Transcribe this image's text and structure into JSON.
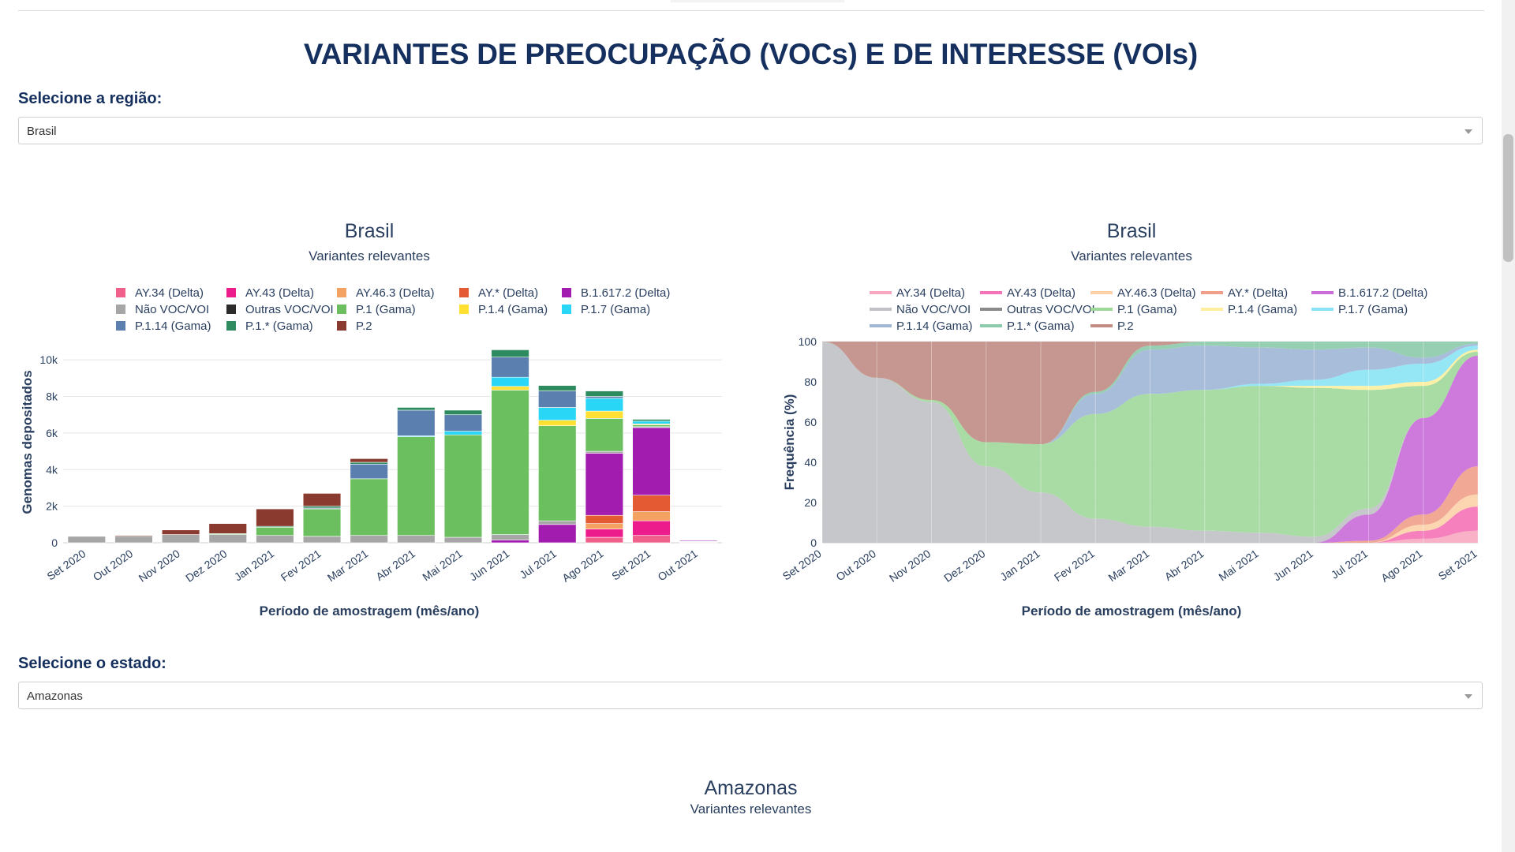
{
  "page": {
    "title": "VARIANTES DE PREOCUPAÇÃO (VOCs) E DE INTERESSE (VOIs)",
    "region_label": "Selecione a região:",
    "region_value": "Brasil",
    "state_label": "Selecione o estado:",
    "state_value": "Amazonas",
    "state_chart_title": "Amazonas",
    "state_chart_subtitle": "Variantes relevantes"
  },
  "chart_data": [
    {
      "type": "bar",
      "stacked": true,
      "title": "Brasil",
      "subtitle": "Variantes relevantes",
      "xlabel": "Período de amostragem (mês/ano)",
      "ylabel": "Genomas depositados",
      "ylim": [
        0,
        11000
      ],
      "yticks": [
        0,
        2000,
        4000,
        6000,
        8000,
        10000
      ],
      "ytick_labels": [
        "0",
        "2k",
        "4k",
        "6k",
        "8k",
        "10k"
      ],
      "categories": [
        "Set 2020",
        "Out 2020",
        "Nov 2020",
        "Dez 2020",
        "Jan 2021",
        "Fev 2021",
        "Mar 2021",
        "Abr 2021",
        "Mai 2021",
        "Jun 2021",
        "Jul 2021",
        "Ago 2021",
        "Set 2021",
        "Out 2021"
      ],
      "series": [
        {
          "name": "AY.34 (Delta)",
          "color": "#f0608a",
          "values": [
            0,
            0,
            0,
            0,
            0,
            0,
            0,
            0,
            0,
            0,
            0,
            300,
            400,
            20
          ]
        },
        {
          "name": "AY.43 (Delta)",
          "color": "#ec1c8c",
          "values": [
            0,
            0,
            0,
            0,
            0,
            0,
            0,
            0,
            0,
            0,
            0,
            450,
            800,
            30
          ]
        },
        {
          "name": "AY.46.3 (Delta)",
          "color": "#f4a261",
          "values": [
            0,
            0,
            0,
            0,
            0,
            0,
            0,
            0,
            0,
            0,
            0,
            300,
            500,
            10
          ]
        },
        {
          "name": "AY.* (Delta)",
          "color": "#e45a32",
          "values": [
            0,
            0,
            0,
            0,
            0,
            0,
            0,
            0,
            0,
            0,
            0,
            450,
            900,
            20
          ]
        },
        {
          "name": "B.1.617.2 (Delta)",
          "color": "#a21caf",
          "values": [
            0,
            0,
            0,
            0,
            0,
            0,
            0,
            0,
            0,
            150,
            1000,
            3400,
            3700,
            60
          ]
        },
        {
          "name": "Não VOC/VOI",
          "color": "#a6a6a6",
          "values": [
            350,
            350,
            450,
            450,
            400,
            350,
            400,
            400,
            300,
            300,
            200,
            100,
            50,
            0
          ]
        },
        {
          "name": "Outras VOC/VOI",
          "color": "#2b2b2b",
          "values": [
            0,
            0,
            0,
            0,
            0,
            0,
            0,
            0,
            0,
            0,
            0,
            0,
            0,
            0
          ]
        },
        {
          "name": "P.1 (Gama)",
          "color": "#6cbf5f",
          "values": [
            0,
            0,
            0,
            50,
            450,
            1500,
            3100,
            5400,
            5600,
            7900,
            5200,
            1800,
            100,
            0
          ]
        },
        {
          "name": "P.1.4 (Gama)",
          "color": "#ffe033",
          "values": [
            0,
            0,
            0,
            0,
            0,
            0,
            0,
            0,
            0,
            200,
            300,
            400,
            50,
            0
          ]
        },
        {
          "name": "P.1.7 (Gama)",
          "color": "#29d6f5",
          "values": [
            0,
            0,
            0,
            0,
            0,
            0,
            0,
            50,
            200,
            500,
            700,
            700,
            150,
            10
          ]
        },
        {
          "name": "P.1.14 (Gama)",
          "color": "#5b7fae",
          "values": [
            0,
            0,
            0,
            0,
            0,
            50,
            800,
            1400,
            900,
            1100,
            900,
            100,
            0,
            0
          ]
        },
        {
          "name": "P.1.* (Gama)",
          "color": "#2e8b5f",
          "values": [
            0,
            0,
            0,
            0,
            50,
            100,
            100,
            150,
            250,
            400,
            300,
            300,
            100,
            10
          ]
        },
        {
          "name": "P.2",
          "color": "#8b3a2f",
          "values": [
            0,
            50,
            250,
            550,
            950,
            700,
            200,
            0,
            0,
            0,
            0,
            0,
            0,
            0
          ]
        }
      ]
    },
    {
      "type": "area",
      "stacked": true,
      "normalized": true,
      "title": "Brasil",
      "subtitle": "Variantes relevantes",
      "xlabel": "Período de amostragem (mês/ano)",
      "ylabel": "Frequência (%)",
      "ylim": [
        0,
        100
      ],
      "yticks": [
        0,
        20,
        40,
        60,
        80,
        100
      ],
      "ytick_labels": [
        "0",
        "20",
        "40",
        "60",
        "80",
        "100"
      ],
      "categories": [
        "Set 2020",
        "Out 2020",
        "Nov 2020",
        "Dez 2020",
        "Jan 2021",
        "Fev 2021",
        "Mar 2021",
        "Abr 2021",
        "Mai 2021",
        "Jun 2021",
        "Jul 2021",
        "Ago 2021",
        "Set 2021"
      ],
      "series": [
        {
          "name": "AY.34 (Delta)",
          "color": "#f7a8c0",
          "values": [
            0,
            0,
            0,
            0,
            0,
            0,
            0,
            0,
            0,
            0,
            0,
            2,
            6
          ]
        },
        {
          "name": "AY.43 (Delta)",
          "color": "#f472b6",
          "values": [
            0,
            0,
            0,
            0,
            0,
            0,
            0,
            0,
            0,
            0,
            0,
            4,
            12
          ]
        },
        {
          "name": "AY.46.3 (Delta)",
          "color": "#fcd0a8",
          "values": [
            0,
            0,
            0,
            0,
            0,
            0,
            0,
            0,
            0,
            0,
            0,
            3,
            6
          ]
        },
        {
          "name": "AY.* (Delta)",
          "color": "#f0a08a",
          "values": [
            0,
            0,
            0,
            0,
            0,
            0,
            0,
            0,
            0,
            0,
            1,
            5,
            14
          ]
        },
        {
          "name": "B.1.617.2 (Delta)",
          "color": "#c86cd8",
          "values": [
            0,
            0,
            0,
            0,
            0,
            0,
            0,
            0,
            0,
            0,
            13,
            48,
            55
          ]
        },
        {
          "name": "Não VOC/VOI",
          "color": "#bfc1c4",
          "values": [
            100,
            82,
            70,
            38,
            25,
            12,
            8,
            6,
            5,
            3,
            3,
            0,
            0
          ]
        },
        {
          "name": "Outras VOC/VOI",
          "color": "#8a8a8a",
          "values": [
            0,
            0,
            0,
            0,
            0,
            0,
            0,
            0,
            0,
            0,
            0,
            0,
            0
          ]
        },
        {
          "name": "P.1 (Gama)",
          "color": "#a0d89a",
          "values": [
            0,
            0,
            1,
            12,
            24,
            52,
            66,
            70,
            73,
            74,
            59,
            16,
            2
          ]
        },
        {
          "name": "P.1.4 (Gama)",
          "color": "#fdef9e",
          "values": [
            0,
            0,
            0,
            0,
            0,
            0,
            0,
            0,
            0,
            1,
            2,
            2,
            1
          ]
        },
        {
          "name": "P.1.7 (Gama)",
          "color": "#8ae4f5",
          "values": [
            0,
            0,
            0,
            0,
            0,
            0,
            0,
            0,
            1,
            3,
            8,
            9,
            2
          ]
        },
        {
          "name": "P.1.14 (Gama)",
          "color": "#9fb6d6",
          "values": [
            0,
            0,
            0,
            0,
            0,
            10,
            22,
            22,
            18,
            15,
            11,
            3,
            1
          ]
        },
        {
          "name": "P.1.* (Gama)",
          "color": "#8ccaaa",
          "values": [
            0,
            0,
            0,
            0,
            0,
            1,
            2,
            2,
            3,
            4,
            3,
            8,
            1
          ]
        },
        {
          "name": "P.2",
          "color": "#c08c84",
          "values": [
            0,
            18,
            29,
            50,
            51,
            25,
            2,
            0,
            0,
            0,
            0,
            0,
            0
          ]
        }
      ]
    }
  ]
}
